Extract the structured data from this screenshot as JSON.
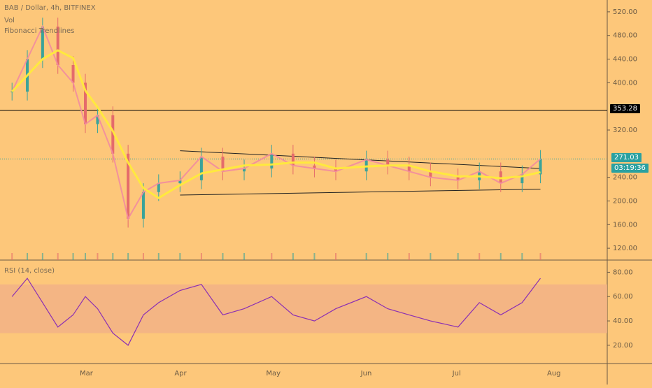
{
  "header": {
    "symbol_line": "BAB / Dollar, 4h, BITFINEX",
    "vol_label": "Vol",
    "indicator_label": "Fibonacci Trendlines",
    "rsi_label": "RSI (14, close)"
  },
  "price_axis": {
    "ticks": [
      "520.00",
      "480.00",
      "440.00",
      "400.00",
      "320.00",
      "240.00",
      "200.00",
      "160.00",
      "120.00"
    ]
  },
  "rsi_axis": {
    "ticks": [
      "80.00",
      "60.00",
      "40.00",
      "20.00"
    ]
  },
  "time_axis": {
    "ticks": [
      "Mar",
      "Apr",
      "May",
      "Jun",
      "Jul",
      "Aug"
    ]
  },
  "tags": {
    "horizontal_level": "353.28",
    "last_price": "271.03",
    "countdown": "03:19:36"
  },
  "colors": {
    "background": "#fdc77a",
    "candles_up": "#3aa39a",
    "candles_down": "#e56b6b",
    "ma_yellow": "#ffeb3b",
    "ma_pink": "#f28ba0",
    "rsi_line": "#8b2fb3",
    "rsi_band": "#f2b186",
    "trendline": "#222222"
  },
  "chart_data": [
    {
      "type": "line",
      "title": "BAB / Dollar, 4h, BITFINEX",
      "x": [
        "Feb 5",
        "Feb 10",
        "Feb 15",
        "Feb 20",
        "Feb 25",
        "Mar 1",
        "Mar 5",
        "Mar 10",
        "Mar 15",
        "Mar 20",
        "Mar 25",
        "Apr 1",
        "Apr 8",
        "Apr 15",
        "Apr 22",
        "May 1",
        "May 8",
        "May 15",
        "May 22",
        "Jun 1",
        "Jun 8",
        "Jun 15",
        "Jun 22",
        "Jul 1",
        "Jul 8",
        "Jul 15",
        "Jul 22",
        "Jul 28"
      ],
      "series": [
        {
          "values": [
            385,
            440,
            495,
            430,
            400,
            330,
            345,
            280,
            170,
            215,
            230,
            235,
            275,
            250,
            255,
            280,
            260,
            255,
            250,
            270,
            260,
            250,
            240,
            235,
            250,
            230,
            245,
            271
          ]
        }
      ],
      "ylim": [
        100,
        540
      ],
      "horizontal_level": 353.28,
      "trendlines": [
        {
          "from": [
            "Apr 1",
            285
          ],
          "to": [
            "Jul 28",
            255
          ]
        },
        {
          "from": [
            "Apr 1",
            210
          ],
          "to": [
            "Jul 28",
            220
          ]
        }
      ]
    },
    {
      "type": "line",
      "title": "RSI (14, close)",
      "x": [
        "Feb 5",
        "Feb 10",
        "Feb 15",
        "Feb 20",
        "Feb 25",
        "Mar 1",
        "Mar 5",
        "Mar 10",
        "Mar 15",
        "Mar 20",
        "Mar 25",
        "Apr 1",
        "Apr 8",
        "Apr 15",
        "Apr 22",
        "May 1",
        "May 8",
        "May 15",
        "May 22",
        "Jun 1",
        "Jun 8",
        "Jun 15",
        "Jun 22",
        "Jul 1",
        "Jul 8",
        "Jul 15",
        "Jul 22",
        "Jul 28"
      ],
      "series": [
        {
          "values": [
            60,
            75,
            55,
            35,
            45,
            60,
            50,
            30,
            20,
            45,
            55,
            65,
            70,
            45,
            50,
            60,
            45,
            40,
            50,
            60,
            50,
            45,
            40,
            35,
            55,
            45,
            55,
            75
          ]
        }
      ],
      "ylim": [
        5,
        90
      ],
      "band": [
        30,
        70
      ]
    }
  ]
}
